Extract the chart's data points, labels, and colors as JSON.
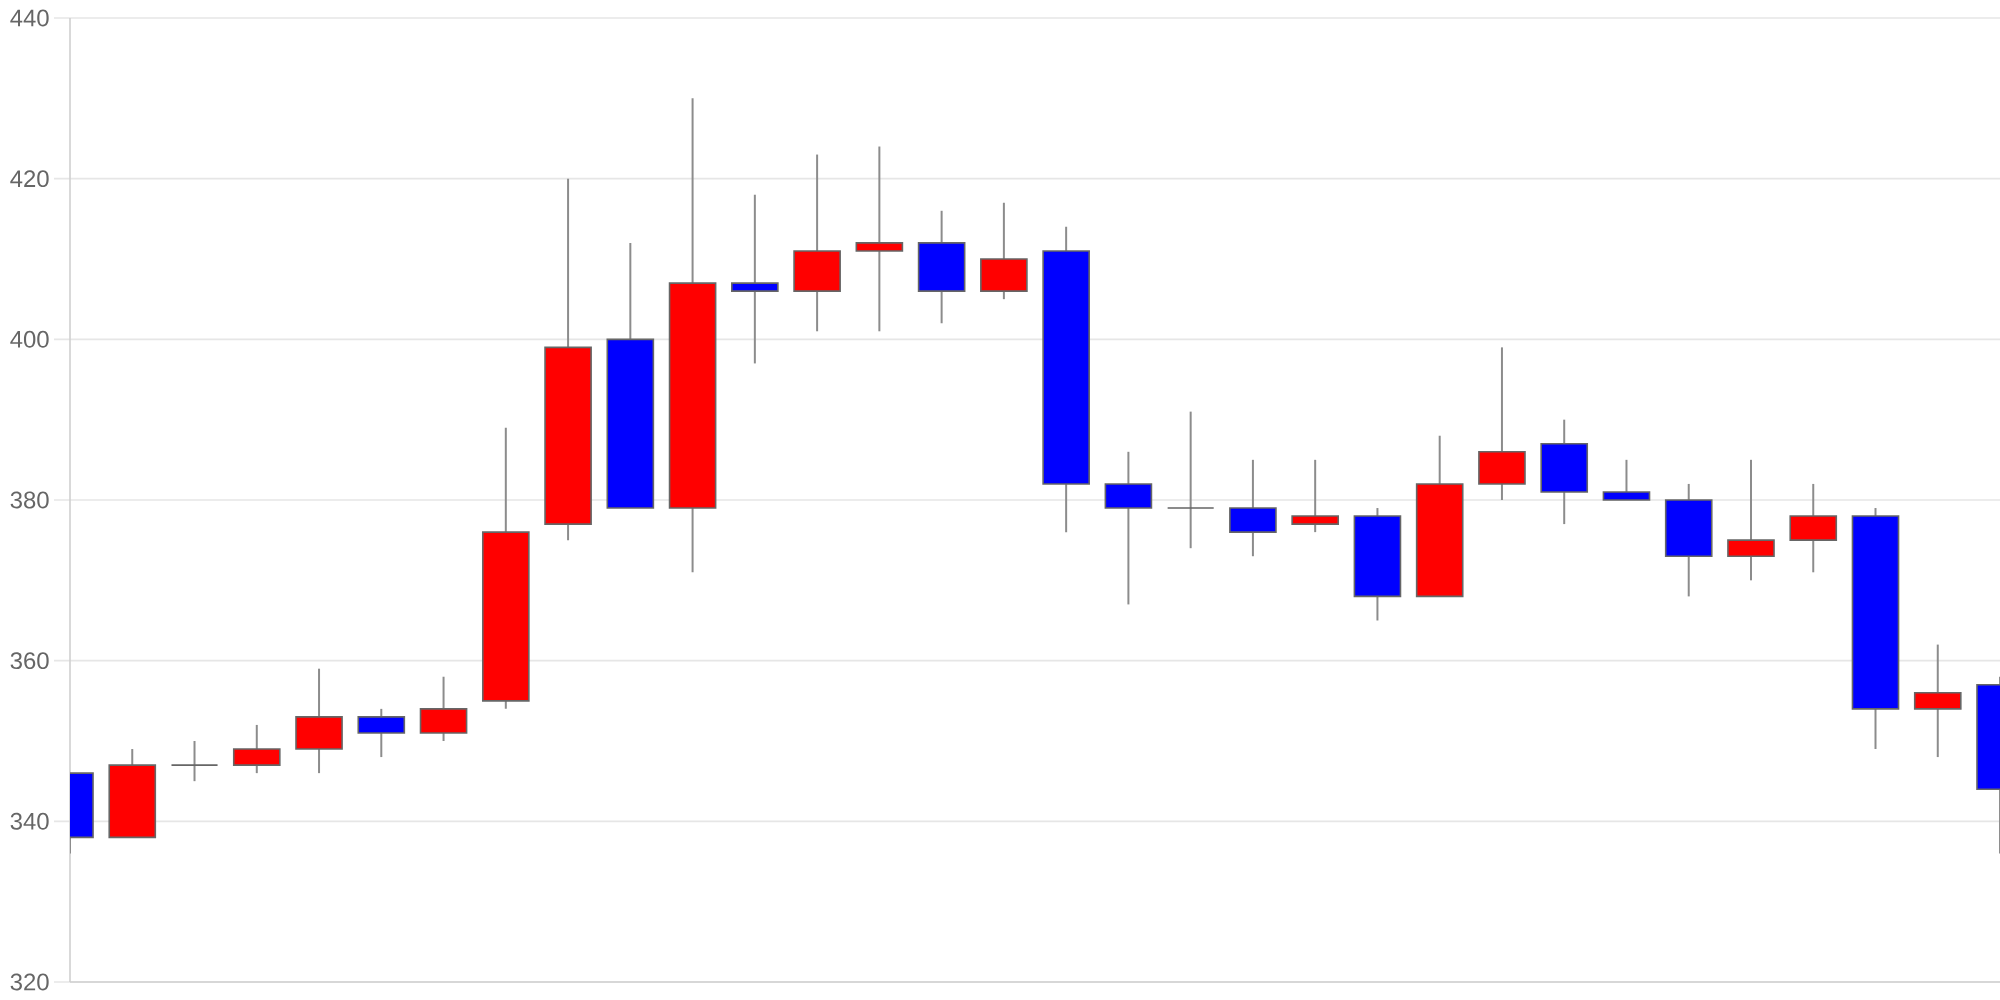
{
  "chart_data": {
    "type": "candlestick",
    "categories": [
      null,
      null,
      null,
      null,
      null,
      null,
      null,
      null,
      null,
      null,
      null,
      null,
      null,
      null,
      null,
      null,
      null,
      null,
      null,
      null,
      null,
      null,
      null,
      null,
      null,
      null,
      null,
      null,
      null,
      null,
      null,
      null
    ],
    "ohlc": [
      [
        346,
        346,
        336,
        338
      ],
      [
        338,
        349,
        338,
        347
      ],
      [
        347,
        350,
        345,
        347
      ],
      [
        347,
        352,
        346,
        349
      ],
      [
        349,
        359,
        346,
        353
      ],
      [
        353,
        354,
        348,
        351
      ],
      [
        351,
        358,
        350,
        354
      ],
      [
        355,
        389,
        354,
        376
      ],
      [
        377,
        420,
        375,
        399
      ],
      [
        400,
        412,
        379,
        379
      ],
      [
        379,
        430,
        371,
        407
      ],
      [
        407,
        418,
        397,
        406
      ],
      [
        406,
        423,
        401,
        411
      ],
      [
        411,
        424,
        401,
        412
      ],
      [
        412,
        416,
        402,
        406
      ],
      [
        406,
        417,
        405,
        410
      ],
      [
        411,
        414,
        376,
        382
      ],
      [
        382,
        386,
        367,
        379
      ],
      [
        379,
        391,
        374,
        379
      ],
      [
        379,
        385,
        373,
        376
      ],
      [
        377,
        385,
        376,
        378
      ],
      [
        378,
        379,
        365,
        368
      ],
      [
        368,
        388,
        368,
        382
      ],
      [
        382,
        399,
        380,
        386
      ],
      [
        387,
        390,
        377,
        381
      ],
      [
        381,
        385,
        380,
        380
      ],
      [
        380,
        382,
        368,
        373
      ],
      [
        373,
        385,
        370,
        375
      ],
      [
        375,
        382,
        371,
        378
      ],
      [
        378,
        379,
        349,
        354
      ],
      [
        354,
        362,
        348,
        356
      ],
      [
        357,
        358,
        336,
        344
      ]
    ],
    "colors": [
      "#0000ff",
      "#ff0000",
      "#666666",
      "#ff0000",
      "#ff0000",
      "#0000ff",
      "#ff0000",
      "#ff0000",
      "#ff0000",
      "#0000ff",
      "#ff0000",
      "#0000ff",
      "#ff0000",
      "#ff0000",
      "#0000ff",
      "#ff0000",
      "#0000ff",
      "#0000ff",
      "#666666",
      "#0000ff",
      "#ff0000",
      "#0000ff",
      "#ff0000",
      "#ff0000",
      "#0000ff",
      "#0000ff",
      "#0000ff",
      "#ff0000",
      "#ff0000",
      "#0000ff",
      "#ff0000",
      "#0000ff"
    ],
    "ylim": [
      320,
      440
    ],
    "yticks": [
      320,
      340,
      360,
      380,
      400,
      420,
      440
    ],
    "grid": "y",
    "tick_labels": "y"
  }
}
